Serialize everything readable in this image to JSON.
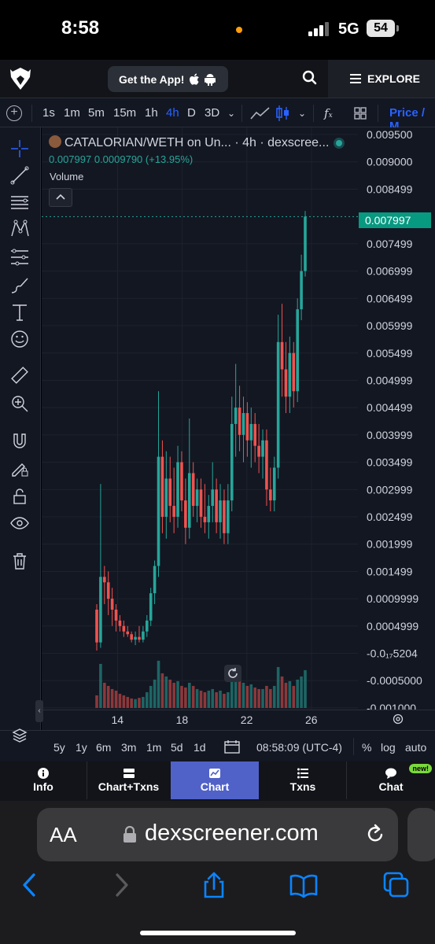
{
  "status_bar": {
    "time": "8:58",
    "network": "5G",
    "battery": "54"
  },
  "header": {
    "get_app_label": "Get the App!",
    "explore_label": "EXPLORE"
  },
  "toolbar": {
    "timeframes": [
      "1s",
      "1m",
      "5m",
      "15m",
      "1h",
      "4h",
      "D",
      "3D"
    ],
    "active_timeframe": "4h",
    "price_tab": "Price / M"
  },
  "legend": {
    "title": "CATALORIAN/WETH on Un... · 4h · dexscree...",
    "values": "0.007997  0.0009790 (+13.95%)",
    "volume_label": "Volume"
  },
  "chart_data": {
    "type": "candlestick",
    "title": "CATALORIAN/WETH on Un... · 4h · dexscree...",
    "y_tick_labels": [
      "0.009500",
      "0.009000",
      "0.008499",
      "0.007499",
      "0.006999",
      "0.006499",
      "0.005999",
      "0.005499",
      "0.004999",
      "0.004499",
      "0.003999",
      "0.003499",
      "0.002999",
      "0.002499",
      "0.001999",
      "0.001499",
      "0.0009999",
      "0.0004999",
      "-0.0₁₇5204",
      "-0.0005000",
      "-0.001000"
    ],
    "y_ticks": [
      0.0095,
      0.009,
      0.008499,
      0.007499,
      0.006999,
      0.006499,
      0.005999,
      0.005499,
      0.004999,
      0.004499,
      0.003999,
      0.003499,
      0.002999,
      0.002499,
      0.001999,
      0.001499,
      0.0009999,
      0.0004999,
      0,
      -0.0005,
      -0.001
    ],
    "ylim": [
      -0.00103,
      0.00963
    ],
    "last_price_label": "0.007997",
    "last_price": 0.007997,
    "x_tick_labels": [
      "14",
      "18",
      "22",
      "26"
    ],
    "grid": true,
    "volume_baseline": -0.001,
    "candles": [
      [
        0.0008,
        0.0009,
        5e-05,
        0.0002,
        40
      ],
      [
        0.0002,
        0.0031,
        0.0001,
        0.0014,
        140
      ],
      [
        0.0014,
        0.0016,
        0.0009,
        0.0013,
        80
      ],
      [
        0.0013,
        0.0015,
        0.0007,
        0.001,
        70
      ],
      [
        0.001,
        0.0012,
        0.0005,
        0.0008,
        60
      ],
      [
        0.0008,
        0.0009,
        0.0004,
        0.0006,
        55
      ],
      [
        0.0006,
        0.0007,
        0.0004,
        0.0005,
        45
      ],
      [
        0.0005,
        0.0006,
        0.0003,
        0.0004,
        40
      ],
      [
        0.0004,
        0.0005,
        0.0003,
        0.00035,
        35
      ],
      [
        0.00035,
        0.0004,
        0.0002,
        0.00025,
        30
      ],
      [
        0.00025,
        0.0004,
        0.00015,
        0.0003,
        28
      ],
      [
        0.0003,
        0.0005,
        0.0002,
        0.00025,
        32
      ],
      [
        0.00025,
        0.0005,
        0.0002,
        0.0004,
        35
      ],
      [
        0.0004,
        0.0007,
        0.0003,
        0.0006,
        50
      ],
      [
        0.0006,
        0.0012,
        0.0005,
        0.0011,
        70
      ],
      [
        0.0011,
        0.0017,
        0.0009,
        0.0016,
        90
      ],
      [
        0.0016,
        0.0048,
        0.0014,
        0.0036,
        150
      ],
      [
        0.0036,
        0.0039,
        0.0022,
        0.0025,
        110
      ],
      [
        0.0025,
        0.0037,
        0.0021,
        0.0032,
        100
      ],
      [
        0.0032,
        0.0036,
        0.0024,
        0.0027,
        90
      ],
      [
        0.0027,
        0.0034,
        0.0022,
        0.0025,
        80
      ],
      [
        0.0025,
        0.0038,
        0.0023,
        0.0035,
        85
      ],
      [
        0.0035,
        0.0037,
        0.0026,
        0.0028,
        70
      ],
      [
        0.0028,
        0.0032,
        0.002,
        0.0023,
        65
      ],
      [
        0.0023,
        0.0043,
        0.0021,
        0.0033,
        80
      ],
      [
        0.0033,
        0.0035,
        0.0025,
        0.0027,
        70
      ],
      [
        0.0027,
        0.0032,
        0.0024,
        0.003,
        60
      ],
      [
        0.003,
        0.0032,
        0.0023,
        0.0025,
        55
      ],
      [
        0.0025,
        0.0031,
        0.0022,
        0.0024,
        50
      ],
      [
        0.0024,
        0.0029,
        0.0021,
        0.0027,
        55
      ],
      [
        0.0027,
        0.0035,
        0.0024,
        0.003,
        60
      ],
      [
        0.003,
        0.0032,
        0.0022,
        0.0024,
        50
      ],
      [
        0.0024,
        0.0031,
        0.0021,
        0.0028,
        55
      ],
      [
        0.0028,
        0.003,
        0.002,
        0.0022,
        45
      ],
      [
        0.0022,
        0.0031,
        0.002,
        0.0028,
        50
      ],
      [
        0.0028,
        0.0047,
        0.0026,
        0.0042,
        110
      ],
      [
        0.0042,
        0.0053,
        0.0036,
        0.0045,
        100
      ],
      [
        0.0045,
        0.0049,
        0.0037,
        0.004,
        90
      ],
      [
        0.004,
        0.0047,
        0.0035,
        0.0044,
        80
      ],
      [
        0.0044,
        0.0046,
        0.0036,
        0.0039,
        70
      ],
      [
        0.0039,
        0.0045,
        0.0034,
        0.0042,
        75
      ],
      [
        0.0042,
        0.0044,
        0.0035,
        0.0038,
        65
      ],
      [
        0.0038,
        0.0042,
        0.0033,
        0.0036,
        60
      ],
      [
        0.0036,
        0.0041,
        0.0032,
        0.0039,
        60
      ],
      [
        0.0039,
        0.0041,
        0.0027,
        0.003,
        70
      ],
      [
        0.003,
        0.0034,
        0.0026,
        0.0028,
        60
      ],
      [
        0.0028,
        0.0036,
        0.0026,
        0.0034,
        70
      ],
      [
        0.0034,
        0.0062,
        0.0032,
        0.0057,
        130
      ],
      [
        0.0057,
        0.0064,
        0.0047,
        0.0052,
        100
      ],
      [
        0.0052,
        0.0057,
        0.0044,
        0.0047,
        80
      ],
      [
        0.0047,
        0.0058,
        0.0044,
        0.0055,
        85
      ],
      [
        0.0055,
        0.0057,
        0.0045,
        0.0048,
        70
      ],
      [
        0.0048,
        0.0065,
        0.0046,
        0.0063,
        90
      ],
      [
        0.0063,
        0.0073,
        0.0061,
        0.007,
        100
      ],
      [
        0.007,
        0.0081,
        0.0069,
        0.007997,
        120
      ]
    ]
  },
  "bottom_controls": {
    "ranges": [
      "5y",
      "1y",
      "6m",
      "3m",
      "1m",
      "5d",
      "1d"
    ],
    "time_display": "08:58:09 (UTC-4)",
    "percent": "%",
    "log": "log",
    "auto": "auto"
  },
  "tabs": [
    {
      "label": "Info"
    },
    {
      "label": "Chart+Txns"
    },
    {
      "label": "Chart",
      "active": true
    },
    {
      "label": "Txns"
    },
    {
      "label": "Chat",
      "badge": "new!"
    }
  ],
  "safari": {
    "aa": "AA",
    "url": "dexscreener.com"
  }
}
